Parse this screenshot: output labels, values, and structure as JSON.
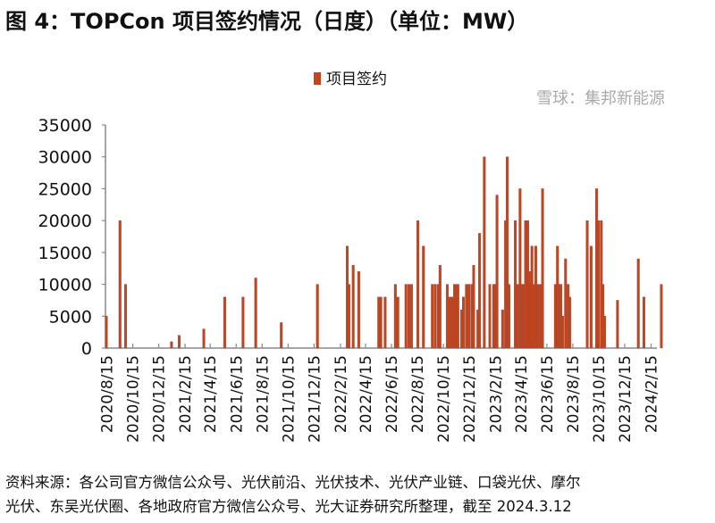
{
  "title": "图 4：TOPCon 项目签约情况（日度）（单位：MW）",
  "source_line1": "资料来源：各公司官方微信公众号、光伏前沿、光伏技术、光伏产业链、口袋光伏、摩尔",
  "source_line2": "光伏、东吴光伏圈、各地政府官方微信公众号、光大证券研究所整理，截至 2024.3.12",
  "watermark": "雪球：集邦新能源",
  "chart_data": {
    "type": "bar",
    "title": "",
    "xlabel": "",
    "ylabel": "",
    "ylim": [
      0,
      35000
    ],
    "yticks": [
      "0",
      "5000",
      "10000",
      "15000",
      "20000",
      "25000",
      "30000",
      "35000"
    ],
    "xticks": [
      "2020/8/15",
      "2020/10/15",
      "2020/12/15",
      "2021/2/15",
      "2021/4/15",
      "2021/6/15",
      "2021/8/15",
      "2021/10/15",
      "2021/12/15",
      "2022/2/15",
      "2022/4/15",
      "2022/6/15",
      "2022/8/15",
      "2022/10/15",
      "2022/12/15",
      "2023/2/15",
      "2023/4/15",
      "2023/6/15",
      "2023/8/15",
      "2023/10/15",
      "2023/12/15",
      "2024/2/15"
    ],
    "xlim": [
      "2020/8/14",
      "2024/3/12"
    ],
    "grid": false,
    "legend_position": "top-center",
    "colors": {
      "bar": "#c4441e",
      "bar_edge": "#9c4632",
      "axis": "#888888"
    },
    "series": [
      {
        "name": "项目签约",
        "points": [
          [
            "2020/8/14",
            5000
          ],
          [
            "2020/9/15",
            20000
          ],
          [
            "2020/9/28",
            10000
          ],
          [
            "2021/1/14",
            1000
          ],
          [
            "2021/2/1",
            2000
          ],
          [
            "2021/3/31",
            3000
          ],
          [
            "2021/5/19",
            8000
          ],
          [
            "2021/7/1",
            8000
          ],
          [
            "2021/7/31",
            11000
          ],
          [
            "2021/9/29",
            4000
          ],
          [
            "2021/12/23",
            10000
          ],
          [
            "2022/3/3",
            16000
          ],
          [
            "2022/3/7",
            10000
          ],
          [
            "2022/3/17",
            13000
          ],
          [
            "2022/3/30",
            12000
          ],
          [
            "2022/5/16",
            8000
          ],
          [
            "2022/5/21",
            8000
          ],
          [
            "2022/5/31",
            8000
          ],
          [
            "2022/6/24",
            10000
          ],
          [
            "2022/6/30",
            8000
          ],
          [
            "2022/7/19",
            10000
          ],
          [
            "2022/7/26",
            10000
          ],
          [
            "2022/8/1",
            10000
          ],
          [
            "2022/8/16",
            20000
          ],
          [
            "2022/8/29",
            16000
          ],
          [
            "2022/9/19",
            10000
          ],
          [
            "2022/9/26",
            10000
          ],
          [
            "2022/10/3",
            10000
          ],
          [
            "2022/10/7",
            13000
          ],
          [
            "2022/10/24",
            10000
          ],
          [
            "2022/10/30",
            8000
          ],
          [
            "2022/11/5",
            8000
          ],
          [
            "2022/11/10",
            10000
          ],
          [
            "2022/11/14",
            10000
          ],
          [
            "2022/11/18",
            10000
          ],
          [
            "2022/11/27",
            6000
          ],
          [
            "2022/12/1",
            8000
          ],
          [
            "2022/12/8",
            10000
          ],
          [
            "2022/12/14",
            10000
          ],
          [
            "2022/12/21",
            10000
          ],
          [
            "2022/12/25",
            13000
          ],
          [
            "2023/1/4",
            6000
          ],
          [
            "2023/1/8",
            18000
          ],
          [
            "2023/1/19",
            30000
          ],
          [
            "2023/2/1",
            10000
          ],
          [
            "2023/2/10",
            10000
          ],
          [
            "2023/2/14",
            10000
          ],
          [
            "2023/2/18",
            24000
          ],
          [
            "2023/3/3",
            6000
          ],
          [
            "2023/3/10",
            20000
          ],
          [
            "2023/3/14",
            30000
          ],
          [
            "2023/3/18",
            10000
          ],
          [
            "2023/4/2",
            20000
          ],
          [
            "2023/4/7",
            10000
          ],
          [
            "2023/4/13",
            25000
          ],
          [
            "2023/4/17",
            10000
          ],
          [
            "2023/4/21",
            10000
          ],
          [
            "2023/4/26",
            20000
          ],
          [
            "2023/5/1",
            20000
          ],
          [
            "2023/5/5",
            12000
          ],
          [
            "2023/5/7",
            10000
          ],
          [
            "2023/5/11",
            16000
          ],
          [
            "2023/5/15",
            10000
          ],
          [
            "2023/5/20",
            16000
          ],
          [
            "2023/5/24",
            10000
          ],
          [
            "2023/5/30",
            10000
          ],
          [
            "2023/6/5",
            25000
          ],
          [
            "2023/7/5",
            10000
          ],
          [
            "2023/7/10",
            16000
          ],
          [
            "2023/7/14",
            10000
          ],
          [
            "2023/7/18",
            10000
          ],
          [
            "2023/7/22",
            5000
          ],
          [
            "2023/7/29",
            14000
          ],
          [
            "2023/8/4",
            10000
          ],
          [
            "2023/8/8",
            8000
          ],
          [
            "2023/9/18",
            20000
          ],
          [
            "2023/9/27",
            16000
          ],
          [
            "2023/10/10",
            25000
          ],
          [
            "2023/10/14",
            20000
          ],
          [
            "2023/10/21",
            20000
          ],
          [
            "2023/10/25",
            10000
          ],
          [
            "2023/10/29",
            5000
          ],
          [
            "2023/11/28",
            7500
          ],
          [
            "2024/1/16",
            14000
          ],
          [
            "2024/1/29",
            8000
          ],
          [
            "2024/3/10",
            10000
          ]
        ]
      }
    ]
  }
}
